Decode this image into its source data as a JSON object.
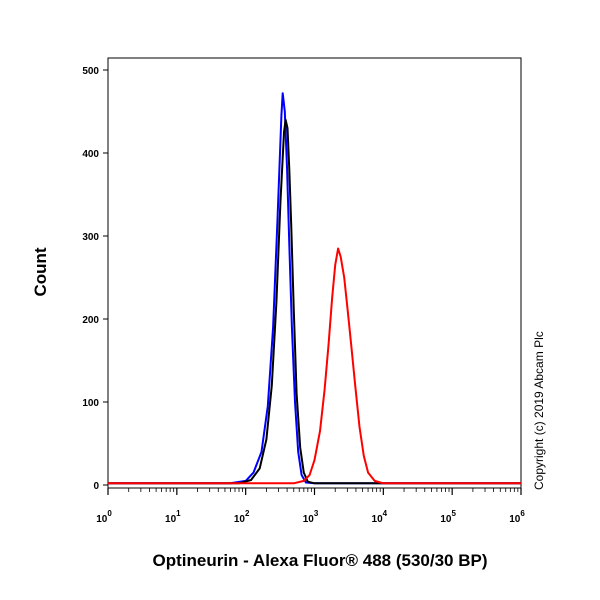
{
  "chart_data": {
    "type": "line",
    "title": "",
    "xlabel": "Optineurin - Alexa Fluor® 488 (530/30 BP)",
    "ylabel": "Count",
    "x_scale": "log",
    "xlim": [
      1,
      1000000
    ],
    "ylim": [
      0,
      520
    ],
    "x_ticks": [
      1,
      10,
      100,
      1000,
      10000,
      100000,
      1000000
    ],
    "y_ticks": [
      0,
      100,
      200,
      300,
      400,
      500
    ],
    "y_tick_labels": [
      "0",
      "100",
      "200",
      "300",
      "400",
      "500"
    ],
    "grid": false,
    "legend": "none",
    "annotation": "Copyright (c) 2019 Abcam Plc",
    "series": [
      {
        "color": "#0000ff",
        "x": [
          1,
          60,
          100,
          130,
          170,
          210,
          250,
          290,
          330,
          345,
          370,
          400,
          430,
          470,
          520,
          580,
          650,
          750,
          1000,
          1000000
        ],
        "y": [
          2,
          2,
          5,
          15,
          40,
          95,
          190,
          320,
          445,
          472,
          450,
          380,
          290,
          190,
          100,
          40,
          12,
          3,
          2,
          2
        ]
      },
      {
        "color": "#000000",
        "x": [
          1,
          80,
          120,
          160,
          200,
          240,
          280,
          320,
          360,
          380,
          405,
          430,
          460,
          500,
          550,
          620,
          700,
          800,
          1000,
          1000000
        ],
        "y": [
          2,
          2,
          6,
          20,
          55,
          120,
          220,
          340,
          425,
          440,
          430,
          380,
          310,
          210,
          110,
          45,
          15,
          4,
          2,
          2
        ]
      },
      {
        "color": "#ff0000",
        "x": [
          1,
          500,
          700,
          850,
          1000,
          1200,
          1400,
          1600,
          1800,
          2000,
          2200,
          2400,
          2700,
          3000,
          3400,
          3900,
          4500,
          5200,
          6000,
          7500,
          10000,
          1000000
        ],
        "y": [
          2,
          2,
          5,
          12,
          30,
          65,
          115,
          170,
          225,
          265,
          285,
          275,
          250,
          215,
          170,
          120,
          70,
          35,
          15,
          5,
          2,
          2
        ]
      }
    ]
  }
}
